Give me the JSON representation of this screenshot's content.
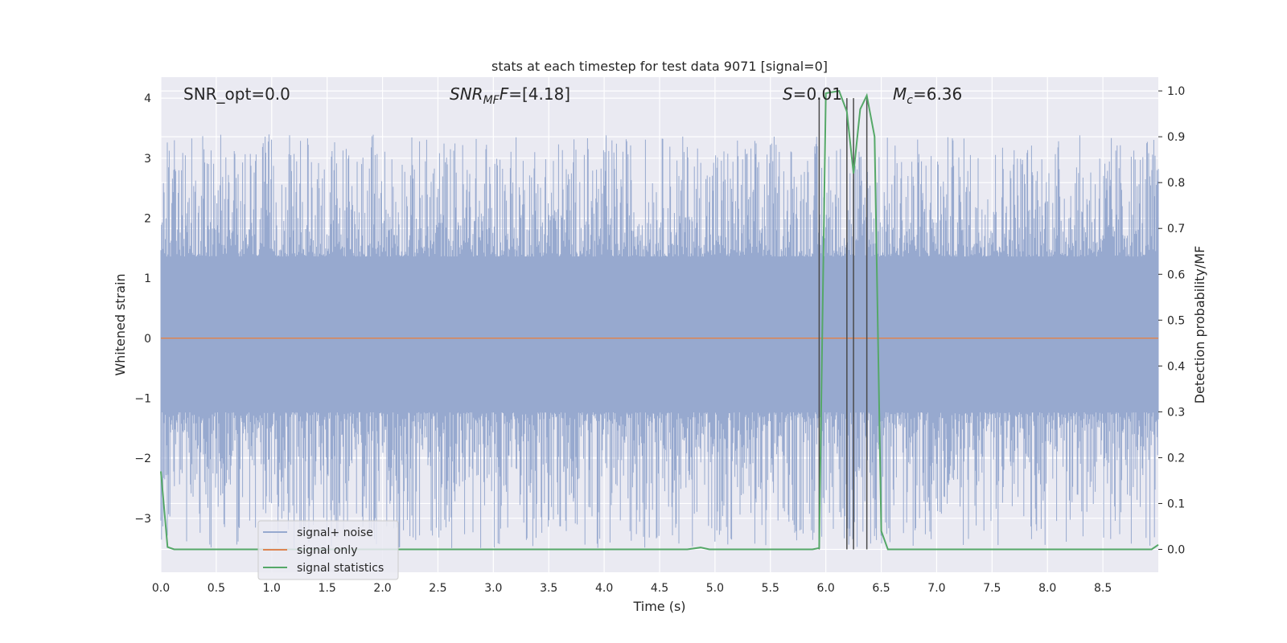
{
  "chart_data": {
    "type": "line",
    "title": "stats at each timestep for test data 9071 [signal=0]",
    "xlabel": "Time (s)",
    "ylabel_left": "Whitened strain",
    "ylabel_right": "Detection probability/MF",
    "xlim": [
      0.0,
      9.0
    ],
    "ylim_left": [
      -3.9,
      4.35
    ],
    "ylim_right": [
      -0.05,
      1.03
    ],
    "x_ticks": [
      0.0,
      0.5,
      1.0,
      1.5,
      2.0,
      2.5,
      3.0,
      3.5,
      4.0,
      4.5,
      5.0,
      5.5,
      6.0,
      6.5,
      7.0,
      7.5,
      8.0,
      8.5
    ],
    "x_tick_labels": [
      "0.0",
      "0.5",
      "1.0",
      "1.5",
      "2.0",
      "2.5",
      "3.0",
      "3.5",
      "4.0",
      "4.5",
      "5.0",
      "5.5",
      "6.0",
      "6.5",
      "7.0",
      "7.5",
      "8.0",
      "8.5"
    ],
    "y_left_ticks": [
      -3,
      -2,
      -1,
      0,
      1,
      2,
      3,
      4
    ],
    "y_left_tick_labels": [
      "−3",
      "−2",
      "−1",
      "0",
      "1",
      "2",
      "3",
      "4"
    ],
    "y_right_ticks": [
      0.0,
      0.1,
      0.2,
      0.3,
      0.4,
      0.5,
      0.6,
      0.7,
      0.8,
      0.9,
      1.0
    ],
    "y_right_tick_labels": [
      "0.0",
      "0.1",
      "0.2",
      "0.3",
      "0.4",
      "0.5",
      "0.6",
      "0.7",
      "0.8",
      "0.9",
      "1.0"
    ],
    "grid": true,
    "legend_position": "lower-left",
    "annotations": {
      "snr_opt": "SNR_opt=0.0",
      "snr_mf_base": "SNR",
      "snr_mf_sub": "MF",
      "snr_mf_value": "=[4.18]",
      "s_base": "S",
      "s_value": "=0.01",
      "mc_base": "M",
      "mc_sub": "c",
      "mc_value": "=6.36"
    },
    "vertical_lines_x": [
      5.94,
      6.19,
      6.25,
      6.37
    ],
    "series": [
      {
        "name": "signal+ noise",
        "color": "#97a9cf",
        "axis": "left",
        "kind": "noise",
        "summary": {
          "core_low": -1.3,
          "core_high": 1.7,
          "peak_max": 3.4,
          "peak_min": -3.5
        }
      },
      {
        "name": "signal only",
        "color": "#dd8452",
        "axis": "left",
        "x": [
          0.0,
          9.0
        ],
        "values": [
          0.0,
          0.0
        ]
      },
      {
        "name": "signal statistics",
        "color": "#55a868",
        "axis": "right",
        "x": [
          0.0,
          0.06,
          0.12,
          4.75,
          4.87,
          4.95,
          5.88,
          5.94,
          5.97,
          6.0,
          6.12,
          6.19,
          6.25,
          6.31,
          6.37,
          6.44,
          6.5,
          6.56,
          8.94,
          9.0
        ],
        "values": [
          0.17,
          0.005,
          0.0,
          0.0,
          0.004,
          0.0,
          0.0,
          0.003,
          0.5,
          0.995,
          1.0,
          0.955,
          0.82,
          0.96,
          0.99,
          0.9,
          0.04,
          0.0,
          0.0,
          0.01
        ]
      }
    ]
  }
}
